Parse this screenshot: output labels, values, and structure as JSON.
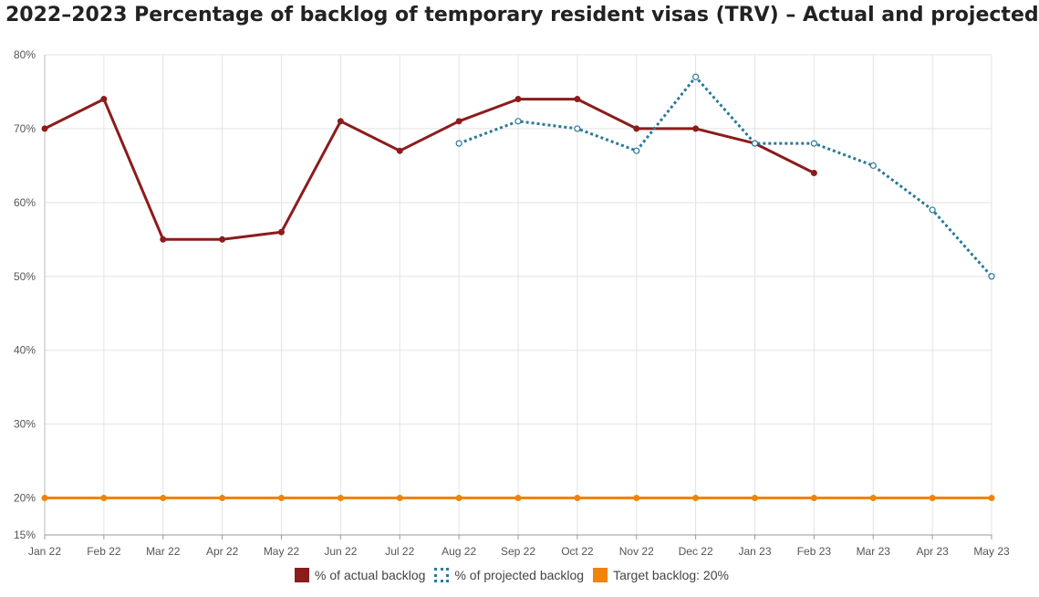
{
  "chart_data": {
    "type": "line",
    "title": "2022–2023 Percentage of backlog of temporary resident visas (TRV) – Actual and projected",
    "xlabel": "",
    "ylabel": "",
    "categories": [
      "Jan 22",
      "Feb 22",
      "Mar 22",
      "Apr 22",
      "May 22",
      "Jun 22",
      "Jul 22",
      "Aug 22",
      "Sep 22",
      "Oct 22",
      "Nov 22",
      "Dec 22",
      "Jan 23",
      "Feb 23",
      "Mar 23",
      "Apr 23",
      "May 23"
    ],
    "y_ticks": [
      15,
      20,
      30,
      40,
      50,
      60,
      70,
      80
    ],
    "y_tick_labels": [
      "15%",
      "20%",
      "30%",
      "40%",
      "50%",
      "60%",
      "70%",
      "80%"
    ],
    "ylim": [
      15,
      80
    ],
    "grid": true,
    "legend_position": "bottom",
    "series": [
      {
        "name": "% of actual backlog",
        "color": "#8b1c1c",
        "style": "solid",
        "values": [
          70,
          74,
          55,
          55,
          56,
          71,
          67,
          71,
          74,
          74,
          70,
          70,
          68,
          64,
          null,
          null,
          null
        ]
      },
      {
        "name": "% of projected backlog",
        "color": "#2a7a96",
        "style": "dotted",
        "values": [
          null,
          null,
          null,
          null,
          null,
          null,
          null,
          68,
          71,
          70,
          67,
          77,
          68,
          68,
          65,
          59,
          50
        ]
      },
      {
        "name": "Target backlog: 20%",
        "color": "#f0830a",
        "style": "solid",
        "values": [
          20,
          20,
          20,
          20,
          20,
          20,
          20,
          20,
          20,
          20,
          20,
          20,
          20,
          20,
          20,
          20,
          20
        ]
      }
    ]
  }
}
